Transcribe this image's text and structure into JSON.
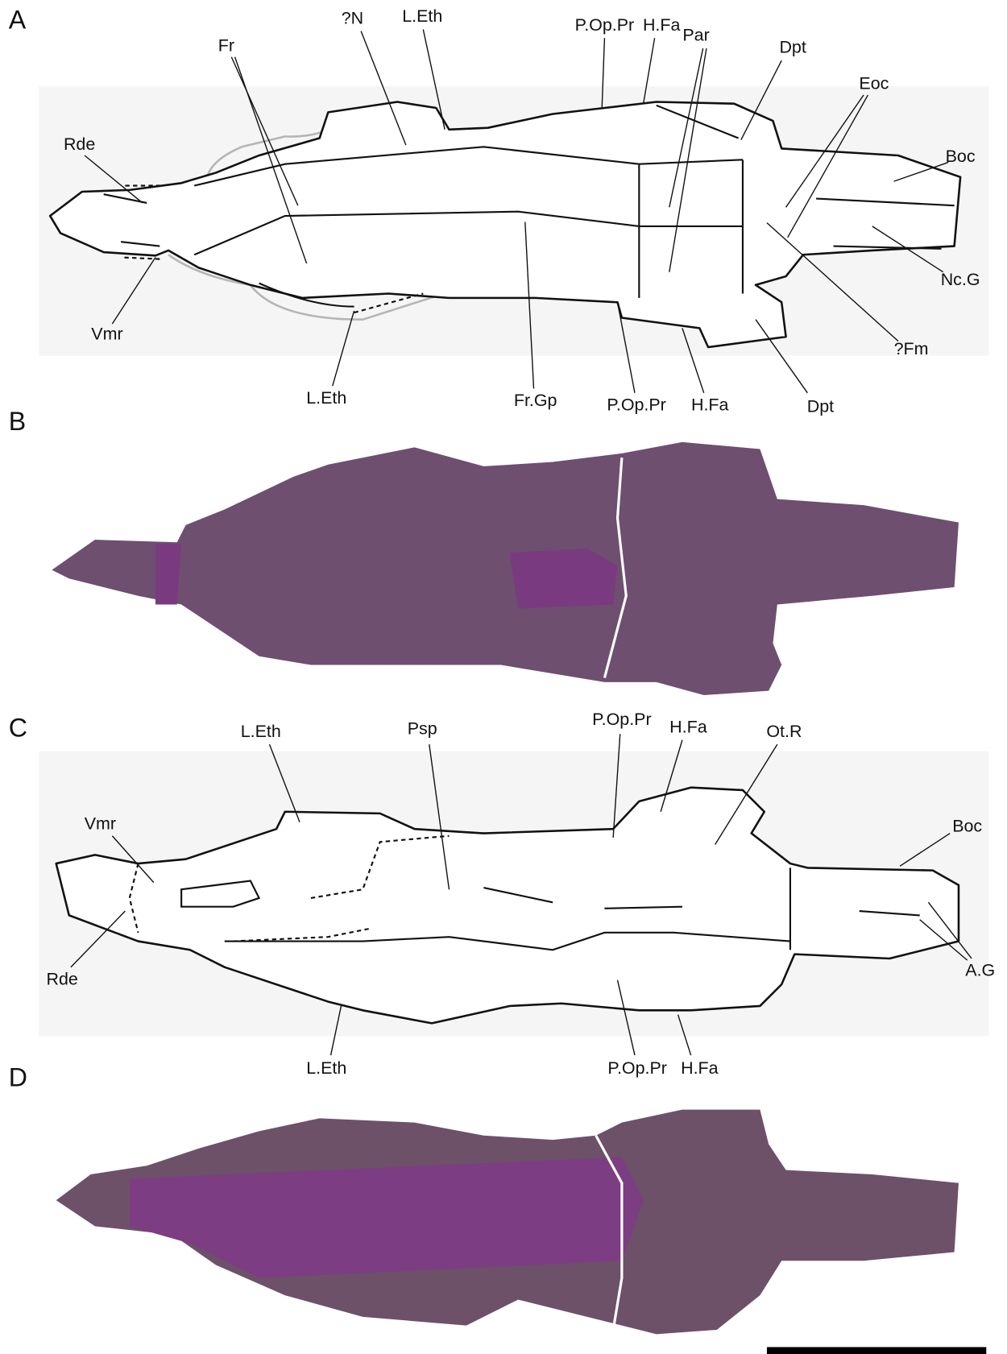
{
  "panels": [
    {
      "letter": "A",
      "labels": [
        "Rde",
        "?N",
        "L.Eth",
        "Fr",
        "P.Op.Pr",
        "H.Fa",
        "Par",
        "Dpt",
        "Eoc",
        "Boc",
        "Nc.G",
        "?Fm",
        "Vmr",
        "L.Eth",
        "Fr.Gp",
        "P.Op.Pr",
        "H.Fa",
        "Dpt"
      ]
    },
    {
      "letter": "B"
    },
    {
      "letter": "C",
      "labels": [
        "L.Eth",
        "Psp",
        "P.Op.Pr",
        "H.Fa",
        "Ot.R",
        "Vmr",
        "Boc",
        "Rde",
        "A.G",
        "L.Eth",
        "P.Op.Pr",
        "H.Fa"
      ]
    },
    {
      "letter": "D"
    }
  ]
}
